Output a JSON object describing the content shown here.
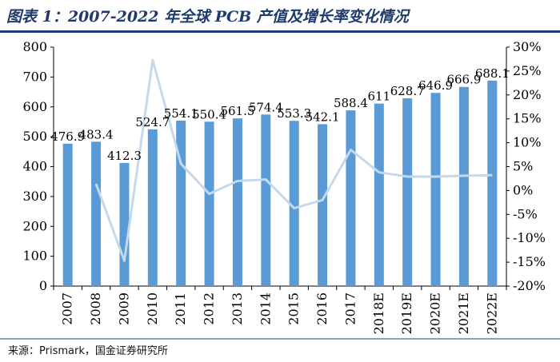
{
  "title": "图表 1：2007-2022 年全球 PCB 产值及增长率变化情况",
  "source": "来源：Prismark，国金证券研究所",
  "colors": {
    "bar": "#5b9bd5",
    "line": "#c5d9ed",
    "title": "#1f3a6b"
  },
  "chart_data": {
    "type": "bar",
    "categories": [
      "2007",
      "2008",
      "2009",
      "2010",
      "2011",
      "2012",
      "2013",
      "2014",
      "2015",
      "2016",
      "2017",
      "2018E",
      "2019E",
      "2020E",
      "2021E",
      "2022E"
    ],
    "series": [
      {
        "type": "bar",
        "axis": "left",
        "values": [
          476.9,
          483.4,
          412.3,
          524.7,
          554.1,
          550.4,
          561.5,
          574.4,
          553.3,
          542.1,
          588.4,
          611,
          628.7,
          646.9,
          666.9,
          688.1
        ],
        "labels": [
          "476.9",
          "483.4",
          "412.3",
          "524.7",
          "554.1",
          "550.4",
          "561.5",
          "574.4",
          "553.3",
          "542.1",
          "588.4",
          "611",
          "628.7",
          "646.9",
          "666.9",
          "688.1"
        ]
      },
      {
        "type": "line",
        "axis": "right",
        "values": [
          null,
          1.4,
          -14.7,
          27.3,
          5.6,
          -0.7,
          2.0,
          2.3,
          -3.7,
          -2.0,
          8.5,
          3.8,
          2.9,
          2.9,
          3.1,
          3.2
        ]
      }
    ],
    "ylim_left": [
      0,
      800
    ],
    "yticks_left": [
      "0",
      "100",
      "200",
      "300",
      "400",
      "500",
      "600",
      "700",
      "800"
    ],
    "ylim_right": [
      -20,
      30
    ],
    "yticks_right": [
      "-20%",
      "-15%",
      "-10%",
      "-5%",
      "0%",
      "5%",
      "10%",
      "15%",
      "20%",
      "25%",
      "30%"
    ],
    "legend": "none",
    "grid": false
  }
}
